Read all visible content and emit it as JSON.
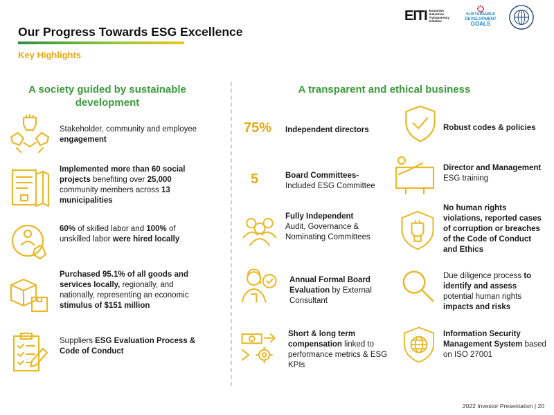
{
  "header": {
    "title": "Our Progress Towards ESG Excellence",
    "subtitle": "Key Highlights",
    "logos": {
      "eiti_mark": "EITI",
      "eiti_text": [
        "Extractive",
        "Industries",
        "Transparency",
        "Initiative"
      ],
      "sdg_text": [
        "SUSTAINABLE",
        "DEVELOPMENT"
      ],
      "sdg_goals": "GOALS"
    }
  },
  "left": {
    "heading_line1": "A society guided by sustainable",
    "heading_line2": "development",
    "items": [
      {
        "icon": "hands-icon",
        "parts": [
          "Stakeholder, community and employee ",
          "engagement"
        ]
      },
      {
        "icon": "document-map-icon",
        "parts": [
          "Implemented more than 60 social projects",
          " benefiting over ",
          "25,000",
          " community members across ",
          "13 municipalities"
        ]
      },
      {
        "icon": "hiring-icon",
        "parts": [
          "60%",
          " of skilled labor and ",
          "100%",
          " of unskilled labor ",
          "were hired locally"
        ]
      },
      {
        "icon": "boxes-icon",
        "parts": [
          "Purchased 95.1% of all goods and services locally,",
          " regionally, and nationally, representing an economic ",
          "stimulus of $151 million"
        ]
      },
      {
        "icon": "clipboard-icon",
        "parts": [
          "Suppliers ",
          "ESG Evaluation Process & Code of Conduct"
        ]
      }
    ]
  },
  "right": {
    "heading": "A transparent and ethical business",
    "col1": [
      {
        "big": "75%",
        "parts": [
          "Independent directors"
        ]
      },
      {
        "big": "5",
        "parts": [
          "Board Committees-",
          "Included ESG Committee"
        ]
      },
      {
        "icon": "people-group-icon",
        "parts": [
          "Fully Independent",
          "Audit, Governance  & Nominating Committees"
        ]
      },
      {
        "icon": "woman-evaluation-icon",
        "parts": [
          "Annual Formal Board Evaluation",
          " by External Consultant"
        ]
      },
      {
        "icon": "money-gear-icon",
        "parts": [
          "Short & long term compensation",
          " linked to performance metrics & ESG KPIs"
        ]
      }
    ],
    "col2": [
      {
        "icon": "shield-check-icon",
        "parts": [
          "Robust codes & policies"
        ]
      },
      {
        "icon": "training-board-icon",
        "parts": [
          "Director and Management",
          " ESG training"
        ]
      },
      {
        "icon": "fist-crest-icon",
        "parts": [
          "No human rights violations, reported cases of corruption or breaches of the Code of Conduct and Ethics"
        ]
      },
      {
        "icon": "magnifier-icon",
        "parts": [
          "Due diligence process ",
          "to identify and assess",
          " potential human rights ",
          "impacts and risks"
        ]
      },
      {
        "icon": "globe-shield-icon",
        "parts": [
          "Information Security Management System",
          " based on ISO 27001"
        ]
      }
    ]
  },
  "footer": "2022 Investor Presentation | 20",
  "colors": {
    "accent": "#f0c419",
    "green": "#3a9a3a",
    "icon_yellow": "#e8b92a"
  }
}
